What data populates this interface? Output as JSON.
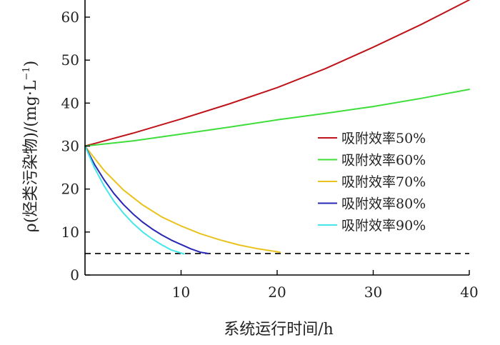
{
  "chart_data": {
    "type": "line",
    "xlabel": "系统运行时间/h",
    "ylabel_main": "ρ(烃类污染物)/(mg·L",
    "ylabel_exp": "−1",
    "ylabel_close": ")",
    "xlim": [
      0,
      40
    ],
    "ylim": [
      0,
      63
    ],
    "xticks": [
      10,
      20,
      30,
      40
    ],
    "yticks": [
      0,
      10,
      20,
      30,
      40,
      50,
      60
    ],
    "grid": false,
    "legend_position": "right-middle",
    "reference_line": {
      "y": 5,
      "style": "dashed",
      "color": "#000000"
    },
    "series": [
      {
        "name": "吸附效率50%",
        "color": "#c0141b",
        "x": [
          0,
          5,
          10,
          15,
          20,
          25,
          30,
          35,
          40
        ],
        "y": [
          30,
          33,
          36.3,
          39.8,
          43.6,
          48,
          53,
          58.3,
          64
        ]
      },
      {
        "name": "吸附效率60%",
        "color": "#3ede3a",
        "x": [
          0,
          5,
          10,
          15,
          20,
          25,
          30,
          35,
          40
        ],
        "y": [
          30,
          31.2,
          32.8,
          34.4,
          36.1,
          37.6,
          39.2,
          41.1,
          43.2
        ]
      },
      {
        "name": "吸附效率70%",
        "color": "#e9c21c",
        "x": [
          0,
          2,
          4,
          6,
          8,
          10,
          12,
          14,
          16,
          18,
          20.3
        ],
        "y": [
          30,
          24.3,
          19.8,
          16.3,
          13.5,
          11.4,
          9.6,
          8.2,
          7,
          6.1,
          5.3
        ]
      },
      {
        "name": "吸附效率80%",
        "color": "#2828b4",
        "x": [
          0,
          1,
          2,
          3,
          4,
          5,
          6,
          7,
          8,
          9,
          10,
          11,
          12,
          12.8
        ],
        "y": [
          30,
          25.7,
          22.1,
          19,
          16.4,
          14.2,
          12.3,
          10.7,
          9.3,
          8.1,
          7.1,
          6.1,
          5.3,
          5
        ]
      },
      {
        "name": "吸附效率90%",
        "color": "#44e6ea",
        "x": [
          0,
          1,
          2,
          3,
          4,
          5,
          6,
          7,
          8,
          9,
          10.3
        ],
        "y": [
          30,
          24.9,
          20.7,
          17.2,
          14.4,
          12,
          10,
          8.4,
          7,
          5.8,
          4.9
        ]
      }
    ]
  }
}
